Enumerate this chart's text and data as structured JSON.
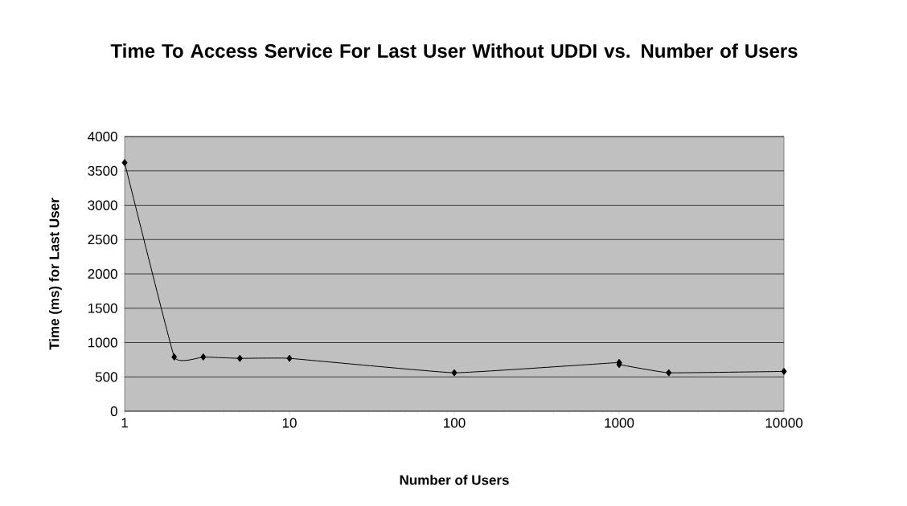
{
  "chart_data": {
    "type": "line",
    "title": "Time To Access Service For Last User Without UDDI vs. Number of Users",
    "xlabel": "Number of Users",
    "ylabel": "Time (ms) for Last User",
    "log": "x",
    "x": [
      1,
      2,
      3,
      5,
      10,
      100,
      1000,
      1000,
      2000,
      10000
    ],
    "series": [
      {
        "color": "#000000",
        "values": [
          3620,
          790,
          790,
          770,
          770,
          560,
          710,
          680,
          560,
          580
        ]
      }
    ],
    "xlim": [
      1,
      10000
    ],
    "ylim": [
      0,
      4000
    ],
    "xticks": [
      1,
      10,
      100,
      1000,
      10000
    ],
    "yticks": [
      0,
      500,
      1000,
      1500,
      2000,
      2500,
      3000,
      3500,
      4000
    ],
    "grid": "y",
    "marker": "diamond",
    "line_style": "solid"
  }
}
